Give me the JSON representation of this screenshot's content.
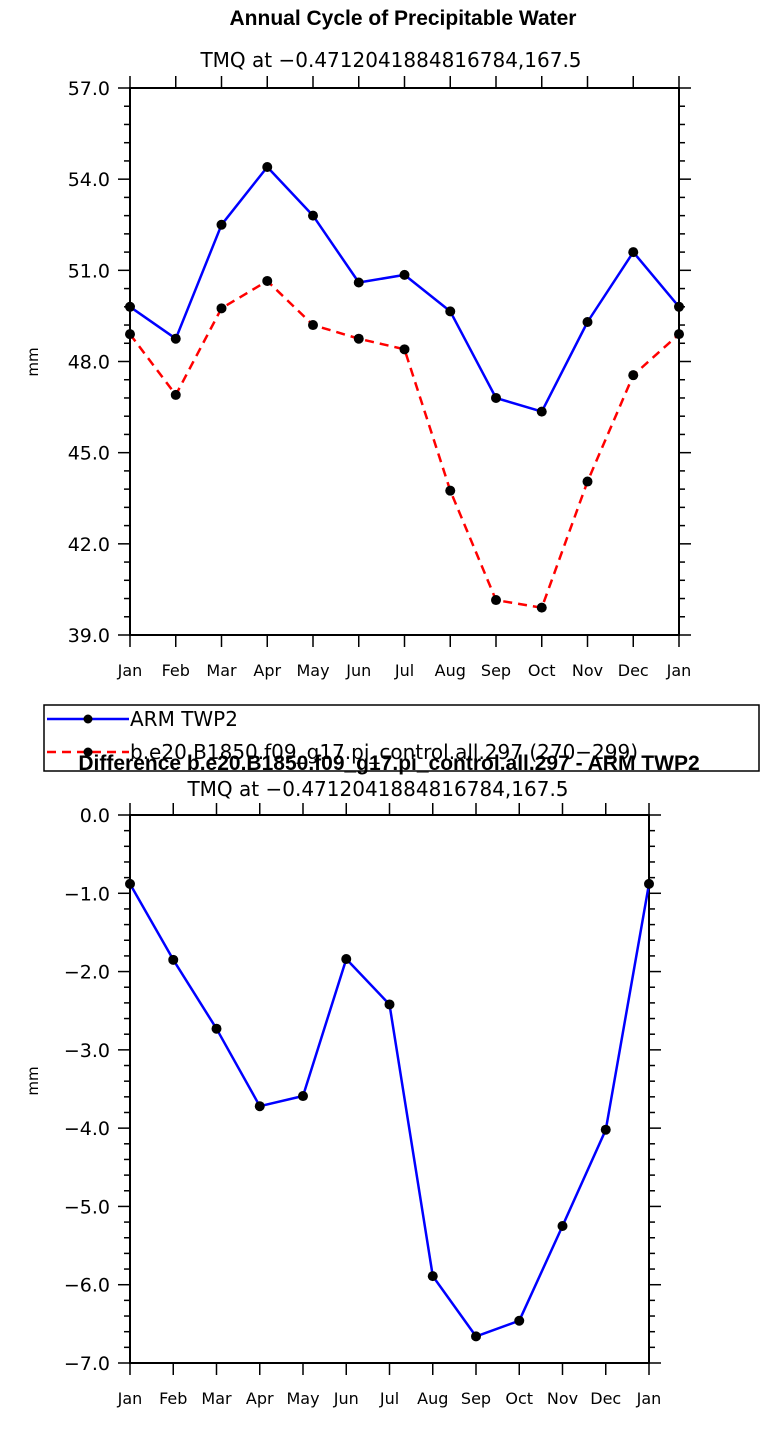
{
  "chart_data": [
    {
      "type": "line",
      "title": "Annual Cycle of Precipitable Water",
      "subtitle": "TMQ  at  −0.4712041884816784,167.5",
      "xlabel": "",
      "ylabel": "mm",
      "categories": [
        "Jan",
        "Feb",
        "Mar",
        "Apr",
        "May",
        "Jun",
        "Jul",
        "Aug",
        "Sep",
        "Oct",
        "Nov",
        "Dec",
        "Jan"
      ],
      "ylim": [
        39.0,
        57.0
      ],
      "yticks": [
        39.0,
        42.0,
        45.0,
        48.0,
        51.0,
        54.0,
        57.0
      ],
      "ytick_labels": [
        "39.0",
        "42.0",
        "45.0",
        "48.0",
        "51.0",
        "54.0",
        "57.0"
      ],
      "grid": false,
      "legend_position": "below",
      "series": [
        {
          "name": "ARM TWP2",
          "color": "#0000ff",
          "dash": "solid",
          "values": [
            49.8,
            48.75,
            52.5,
            54.4,
            52.8,
            50.6,
            50.85,
            49.65,
            46.8,
            46.35,
            49.3,
            51.6,
            49.8
          ]
        },
        {
          "name": "b.e20.B1850.f09_g17.pi_control.all.297 (270−299)",
          "color": "#ff0000",
          "dash": "dashed",
          "values": [
            48.9,
            46.9,
            49.75,
            50.65,
            49.2,
            48.75,
            48.4,
            43.75,
            40.15,
            39.9,
            44.05,
            47.55,
            48.9
          ]
        }
      ]
    },
    {
      "type": "line",
      "title": "Difference b.e20.B1850.f09_g17.pi_control.all.297 - ARM TWP2",
      "subtitle": "TMQ  at  −0.4712041884816784,167.5",
      "xlabel": "",
      "ylabel": "mm",
      "categories": [
        "Jan",
        "Feb",
        "Mar",
        "Apr",
        "May",
        "Jun",
        "Jul",
        "Aug",
        "Sep",
        "Oct",
        "Nov",
        "Dec",
        "Jan"
      ],
      "ylim": [
        -7.0,
        0.0
      ],
      "yticks": [
        -7.0,
        -6.0,
        -5.0,
        -4.0,
        -3.0,
        -2.0,
        -1.0,
        0.0
      ],
      "ytick_labels": [
        "−7.0",
        "−6.0",
        "−5.0",
        "−4.0",
        "−3.0",
        "−2.0",
        "−1.0",
        "0.0"
      ],
      "grid": false,
      "series": [
        {
          "name": "Difference",
          "color": "#0000ff",
          "dash": "solid",
          "values": [
            -0.88,
            -1.85,
            -2.73,
            -3.72,
            -3.59,
            -1.84,
            -2.42,
            -5.89,
            -6.66,
            -6.46,
            -5.25,
            -4.02,
            -0.88
          ]
        }
      ]
    }
  ]
}
